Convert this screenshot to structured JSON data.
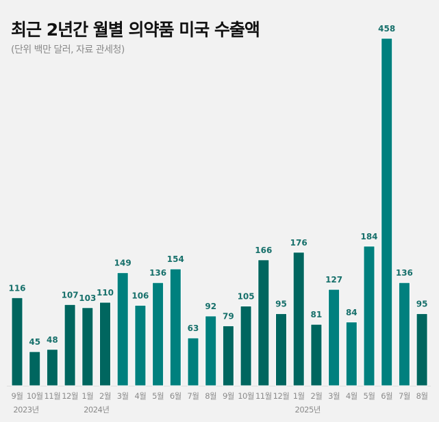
{
  "header": {
    "title": "최근 2년간 월별 의약품 미국 수출액",
    "subtitle": "(단위 백만 달러, 자료 관세청)"
  },
  "colors": {
    "dark": "#00665f",
    "bright": "#00807e",
    "label": "#17706b",
    "axis": "#dcdcdc",
    "tick": "#8a8a8a"
  },
  "chart_data": {
    "type": "bar",
    "title": "최근 2년간 월별 의약품 미국 수출액",
    "subtitle": "(단위 백만 달러, 자료 관세청)",
    "xlabel": "",
    "ylabel": "백만 달러",
    "ylim": [
      0,
      458
    ],
    "grid": false,
    "legend": "none",
    "categories": [
      "9월",
      "10월",
      "11월",
      "12월",
      "1월",
      "2월",
      "3월",
      "4월",
      "5월",
      "6월",
      "7월",
      "8월",
      "9월",
      "10월",
      "11월",
      "12월",
      "1월",
      "2월",
      "3월",
      "4월",
      "5월",
      "6월",
      "7월",
      "8월"
    ],
    "year_labels": [
      {
        "index": 0,
        "label": "2023년"
      },
      {
        "index": 4,
        "label": "2024년"
      },
      {
        "index": 16,
        "label": "2025년"
      }
    ],
    "values": [
      116,
      45,
      48,
      107,
      103,
      110,
      149,
      106,
      136,
      154,
      63,
      92,
      79,
      105,
      166,
      95,
      176,
      81,
      127,
      84,
      184,
      458,
      136,
      95
    ],
    "color_groups": [
      "dark",
      "dark",
      "dark",
      "dark",
      "dark",
      "dark",
      "bright",
      "bright",
      "bright",
      "bright",
      "bright",
      "bright",
      "dark",
      "dark",
      "dark",
      "dark",
      "dark",
      "dark",
      "bright",
      "bright",
      "bright",
      "bright",
      "bright",
      "dark"
    ]
  }
}
